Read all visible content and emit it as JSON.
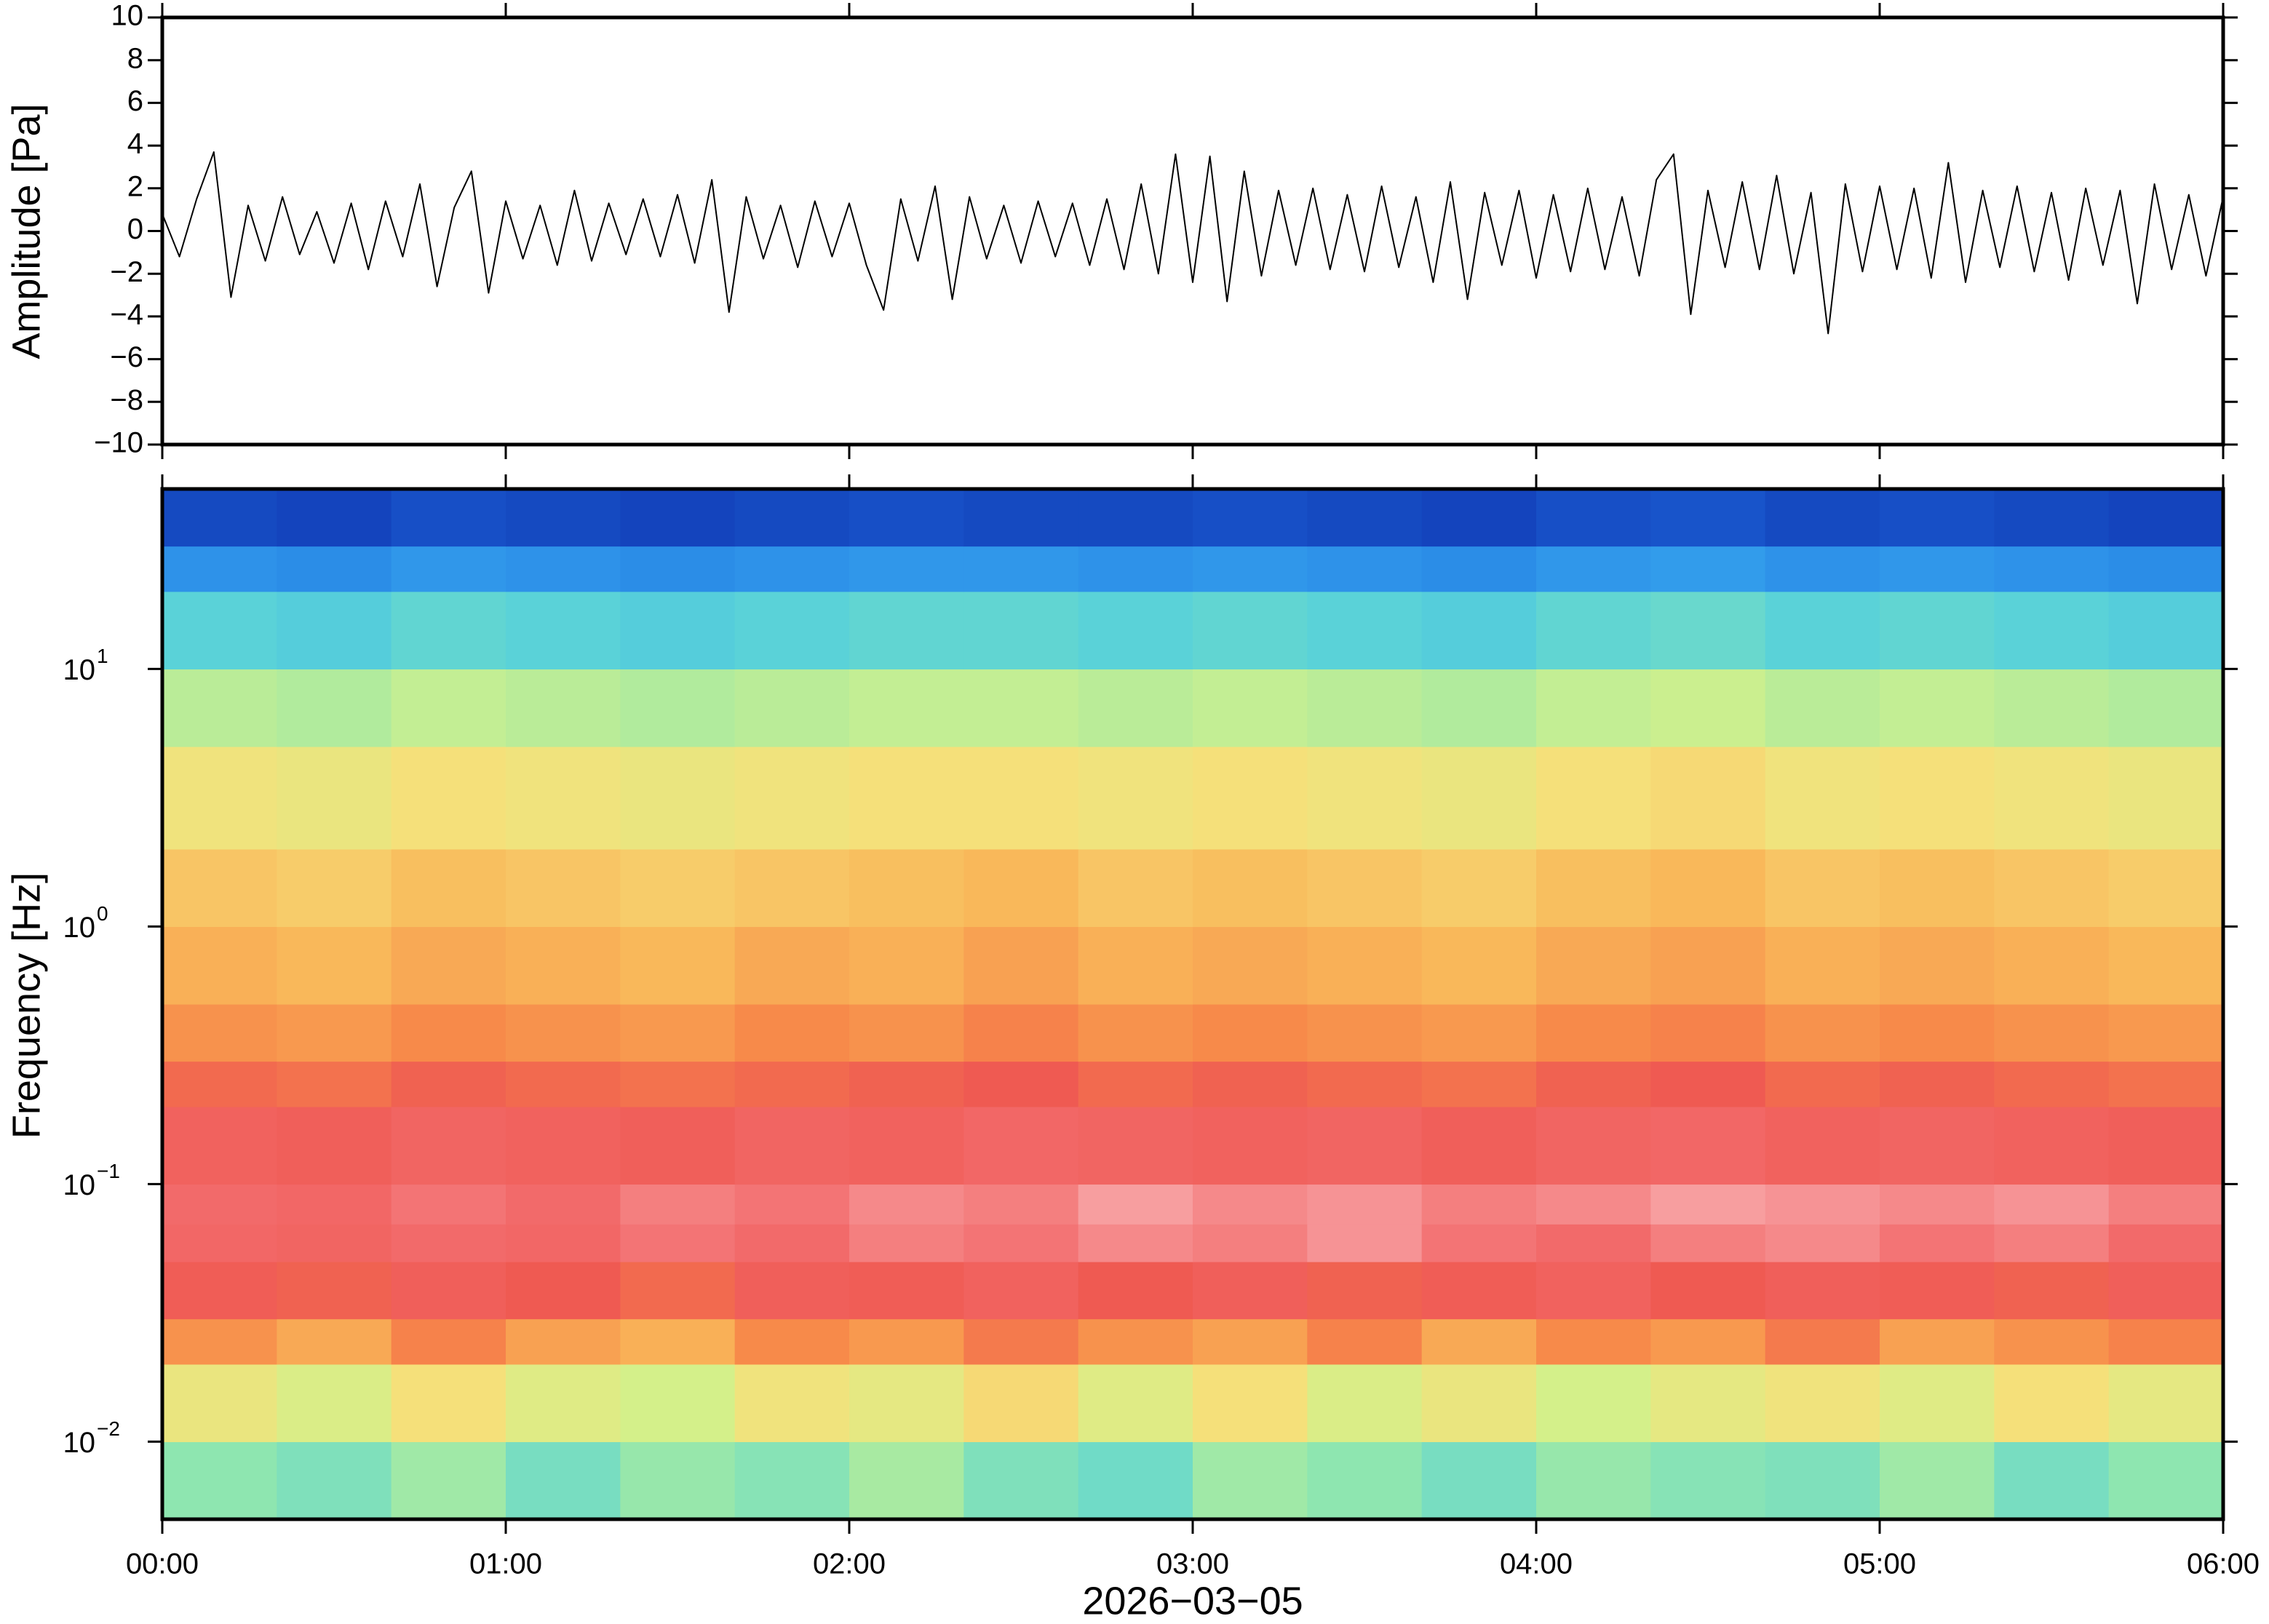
{
  "chart_data": [
    {
      "type": "line",
      "y_label": "Amplitude [Pa]",
      "color": "#000000",
      "xlim": [
        0,
        360
      ],
      "ylim": [
        -10,
        10
      ],
      "yticks": [
        {
          "value": -10,
          "label": "−10"
        },
        {
          "value": -8,
          "label": "−8"
        },
        {
          "value": -6,
          "label": "−6"
        },
        {
          "value": -4,
          "label": "−4"
        },
        {
          "value": -2,
          "label": "−2"
        },
        0,
        2,
        4,
        6,
        8,
        10
      ],
      "x": [
        0,
        3,
        6,
        9,
        12,
        15,
        18,
        21,
        24,
        27,
        30,
        33,
        36,
        39,
        42,
        45,
        48,
        51,
        54,
        57,
        60,
        63,
        66,
        69,
        72,
        75,
        78,
        81,
        84,
        87,
        90,
        93,
        96,
        99,
        102,
        105,
        108,
        111,
        114,
        117,
        120,
        123,
        126,
        129,
        132,
        135,
        138,
        141,
        144,
        147,
        150,
        153,
        156,
        159,
        162,
        165,
        168,
        171,
        174,
        177,
        180,
        183,
        186,
        189,
        192,
        195,
        198,
        201,
        204,
        207,
        210,
        213,
        216,
        219,
        222,
        225,
        228,
        231,
        234,
        237,
        240,
        243,
        246,
        249,
        252,
        255,
        258,
        261,
        264,
        267,
        270,
        273,
        276,
        279,
        282,
        285,
        288,
        291,
        294,
        297,
        300,
        303,
        306,
        309,
        312,
        315,
        318,
        321,
        324,
        327,
        330,
        333,
        336,
        339,
        342,
        345,
        348,
        351,
        354,
        357,
        360
      ],
      "values": [
        0.8,
        -1.2,
        1.5,
        3.7,
        -3.1,
        1.2,
        -1.4,
        1.6,
        -1.1,
        0.9,
        -1.5,
        1.3,
        -1.8,
        1.4,
        -1.2,
        2.2,
        -2.6,
        1.1,
        2.8,
        -2.9,
        1.4,
        -1.3,
        1.2,
        -1.6,
        1.9,
        -1.4,
        1.3,
        -1.1,
        1.5,
        -1.2,
        1.7,
        -1.5,
        2.4,
        -3.8,
        1.6,
        -1.3,
        1.2,
        -1.7,
        1.4,
        -1.2,
        1.3,
        -1.6,
        -3.7,
        1.5,
        -1.4,
        2.1,
        -3.2,
        1.6,
        -1.3,
        1.2,
        -1.5,
        1.4,
        -1.2,
        1.3,
        -1.6,
        1.5,
        -1.8,
        2.2,
        -2.0,
        3.6,
        -2.4,
        3.5,
        -3.3,
        2.8,
        -2.1,
        1.9,
        -1.6,
        2.0,
        -1.8,
        1.7,
        -1.9,
        2.1,
        -1.7,
        1.6,
        -2.4,
        2.3,
        -3.2,
        1.8,
        -1.6,
        1.9,
        -2.2,
        1.7,
        -1.9,
        2.0,
        -1.8,
        1.6,
        -2.1,
        2.4,
        3.6,
        -3.9,
        1.9,
        -1.7,
        2.3,
        -1.8,
        2.6,
        -2.0,
        1.8,
        -4.8,
        2.2,
        -1.9,
        2.1,
        -1.8,
        2.0,
        -2.2,
        3.2,
        -2.4,
        1.9,
        -1.7,
        2.1,
        -1.9,
        1.8,
        -2.3,
        2.0,
        -1.6,
        1.9,
        -3.4,
        2.2,
        -1.8,
        1.7,
        -2.1,
        1.6
      ]
    },
    {
      "type": "heatmap",
      "x_label": "2026−03−05",
      "y_label": "Frequency [Hz]",
      "log_y": true,
      "xlim": [
        0,
        360
      ],
      "xticks": [
        {
          "value": 0,
          "label": "00:00"
        },
        {
          "value": 60,
          "label": "01:00"
        },
        {
          "value": 120,
          "label": "02:00"
        },
        {
          "value": 180,
          "label": "03:00"
        },
        {
          "value": 240,
          "label": "04:00"
        },
        {
          "value": 300,
          "label": "05:00"
        },
        {
          "value": 360,
          "label": "06:00"
        }
      ],
      "ylim": [
        0.005,
        50
      ],
      "yticks": [
        {
          "value": 0.01,
          "label": "10",
          "sup": "−2"
        },
        {
          "value": 0.1,
          "label": "10",
          "sup": "−1"
        },
        {
          "value": 1,
          "label": "10",
          "sup": "0"
        },
        {
          "value": 10,
          "label": "10",
          "sup": "1"
        }
      ],
      "colormap": [
        {
          "value": 10,
          "color": "#0a1f9e"
        },
        {
          "value": 25,
          "color": "#1f6fe0"
        },
        {
          "value": 38,
          "color": "#3ab0f0"
        },
        {
          "value": 45,
          "color": "#5ad2d8"
        },
        {
          "value": 52,
          "color": "#8ee6b0"
        },
        {
          "value": 60,
          "color": "#d4f08a"
        },
        {
          "value": 66,
          "color": "#f5e07a"
        },
        {
          "value": 72,
          "color": "#f9b85a"
        },
        {
          "value": 78,
          "color": "#f78a4a"
        },
        {
          "value": 84,
          "color": "#ef5a52"
        },
        {
          "value": 90,
          "color": "#f26a6a"
        },
        {
          "value": 96,
          "color": "#f8a8aa"
        }
      ],
      "x_bins": [
        0,
        20,
        40,
        60,
        80,
        100,
        120,
        140,
        160,
        180,
        200,
        220,
        240,
        260,
        280,
        300,
        320,
        340,
        360
      ],
      "y_bins": [
        0.005,
        0.01,
        0.02,
        0.03,
        0.05,
        0.07,
        0.1,
        0.2,
        0.3,
        0.5,
        1,
        2,
        5,
        10,
        20,
        30,
        50
      ],
      "z": [
        [
          52,
          50,
          54,
          49,
          53,
          51,
          55,
          50,
          48,
          54,
          52,
          49,
          53,
          51,
          50,
          54,
          49,
          52
        ],
        [
          64,
          61,
          66,
          62,
          60,
          65,
          63,
          67,
          62,
          66,
          61,
          64,
          60,
          63,
          65,
          62,
          66,
          63
        ],
        [
          77,
          74,
          79,
          75,
          73,
          78,
          76,
          80,
          77,
          75,
          79,
          74,
          78,
          76,
          80,
          75,
          77,
          79
        ],
        [
          85,
          83,
          86,
          84,
          82,
          86,
          85,
          87,
          84,
          86,
          83,
          85,
          87,
          84,
          86,
          85,
          83,
          86
        ],
        [
          89,
          88,
          90,
          89,
          91,
          90,
          92,
          91,
          93,
          92,
          94,
          91,
          90,
          92,
          93,
          91,
          92,
          90
        ],
        [
          90,
          89,
          91,
          90,
          92,
          91,
          93,
          92,
          95,
          93,
          94,
          92,
          93,
          95,
          94,
          93,
          94,
          92
        ],
        [
          87,
          86,
          88,
          87,
          86,
          88,
          87,
          89,
          88,
          87,
          88,
          86,
          88,
          89,
          87,
          88,
          87,
          86
        ],
        [
          82,
          81,
          83,
          82,
          81,
          82,
          83,
          84,
          82,
          83,
          82,
          81,
          83,
          84,
          82,
          83,
          82,
          81
        ],
        [
          77,
          76,
          78,
          77,
          76,
          78,
          77,
          79,
          77,
          78,
          77,
          76,
          78,
          79,
          77,
          78,
          77,
          76
        ],
        [
          73,
          72,
          74,
          73,
          72,
          74,
          73,
          75,
          73,
          74,
          73,
          72,
          74,
          75,
          73,
          74,
          73,
          72
        ],
        [
          70,
          69,
          71,
          70,
          69,
          70,
          71,
          72,
          70,
          71,
          70,
          69,
          71,
          72,
          70,
          71,
          70,
          69
        ],
        [
          65,
          64,
          66,
          65,
          64,
          65,
          66,
          66,
          65,
          66,
          65,
          64,
          66,
          67,
          65,
          66,
          65,
          64
        ],
        [
          57,
          56,
          58,
          57,
          56,
          57,
          58,
          58,
          57,
          58,
          57,
          56,
          58,
          59,
          57,
          58,
          57,
          56
        ],
        [
          45,
          44,
          46,
          45,
          44,
          45,
          46,
          46,
          45,
          46,
          45,
          44,
          46,
          47,
          45,
          46,
          45,
          44
        ],
        [
          32,
          31,
          33,
          32,
          31,
          32,
          33,
          33,
          32,
          33,
          32,
          31,
          33,
          34,
          32,
          33,
          32,
          31
        ],
        [
          18,
          17,
          19,
          18,
          17,
          18,
          19,
          18,
          18,
          19,
          18,
          17,
          19,
          20,
          18,
          19,
          18,
          17
        ]
      ]
    }
  ]
}
